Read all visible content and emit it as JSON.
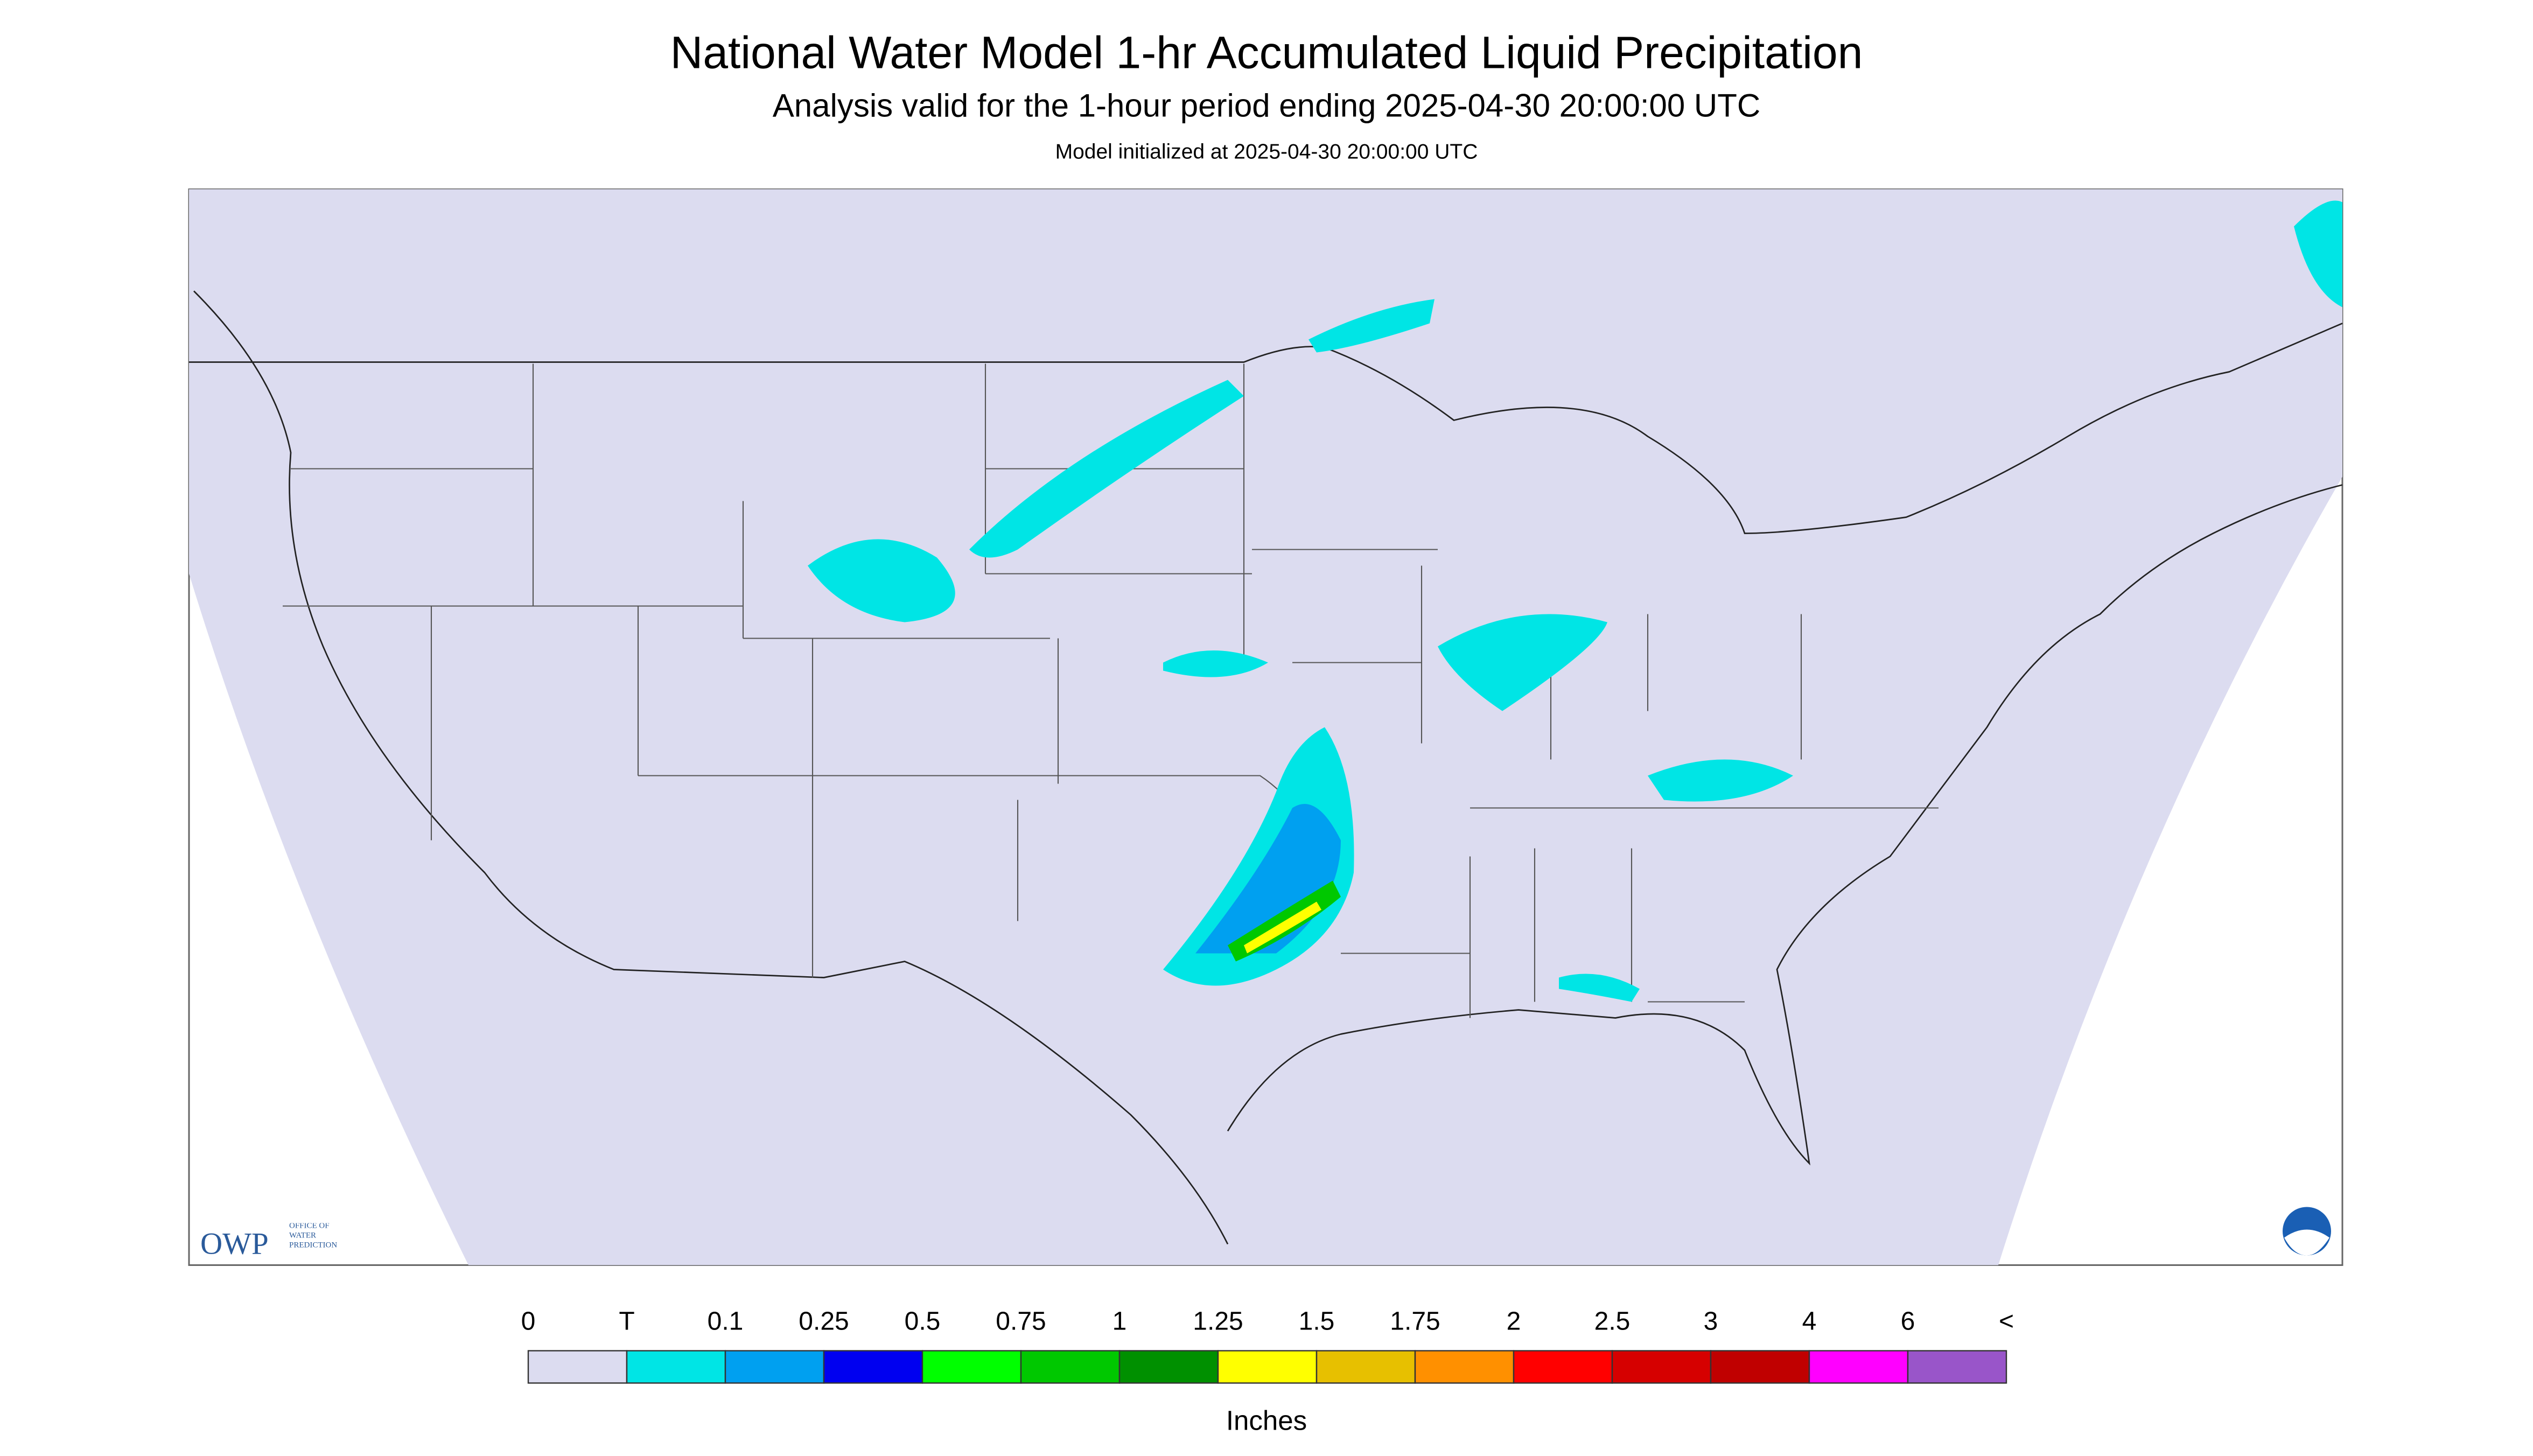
{
  "header": {
    "title": "National Water Model 1-hr Accumulated Liquid Precipitation",
    "subtitle": "Analysis valid for the 1-hour period ending 2025-04-30 20:00:00 UTC",
    "init": "Model initialized at 2025-04-30 20:00:00 UTC"
  },
  "colorbar": {
    "labels": [
      "0",
      "T",
      "0.1",
      "0.25",
      "0.5",
      "0.75",
      "1",
      "1.25",
      "1.5",
      "1.75",
      "2",
      "2.5",
      "3",
      "4",
      "6",
      "<"
    ],
    "colors": [
      "#dcdcf0",
      "#00e5e5",
      "#00a0f0",
      "#0000f0",
      "#00ff00",
      "#00c800",
      "#009000",
      "#ffff00",
      "#e7c000",
      "#ff9000",
      "#ff0000",
      "#d60000",
      "#c00000",
      "#ff00ff",
      "#9955c9"
    ],
    "unit": "Inches"
  },
  "logo": {
    "mark": "OWP",
    "text": "OFFICE OF WATER PREDICTION"
  }
}
